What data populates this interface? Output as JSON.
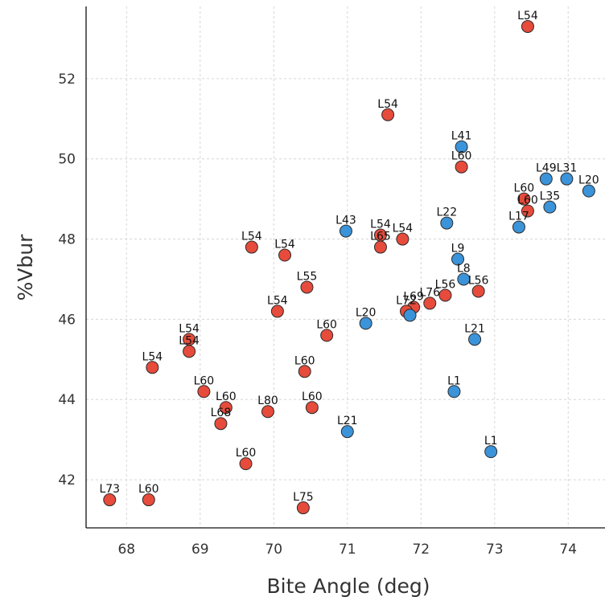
{
  "chart_data": {
    "type": "scatter",
    "xlabel": "Bite Angle (deg)",
    "ylabel": "%Vbur",
    "xlim": [
      67.45,
      74.5
    ],
    "ylim": [
      40.8,
      53.8
    ],
    "xticks": [
      68,
      69,
      70,
      71,
      72,
      73,
      74
    ],
    "yticks": [
      42,
      44,
      46,
      48,
      50,
      52
    ],
    "grid": true,
    "colors": {
      "red": "#e64b3b",
      "blue": "#3b93d9",
      "edge": "#2b2b2b"
    },
    "points": [
      {
        "x": 73.45,
        "y": 53.3,
        "label": "L54",
        "color": "red"
      },
      {
        "x": 71.55,
        "y": 51.1,
        "label": "L54",
        "color": "red"
      },
      {
        "x": 72.55,
        "y": 50.3,
        "label": "L41",
        "color": "blue"
      },
      {
        "x": 72.55,
        "y": 49.8,
        "label": "L60",
        "color": "red"
      },
      {
        "x": 73.7,
        "y": 49.5,
        "label": "L49",
        "color": "blue"
      },
      {
        "x": 73.98,
        "y": 49.5,
        "label": "L31",
        "color": "blue"
      },
      {
        "x": 74.28,
        "y": 49.2,
        "label": "L20",
        "color": "blue"
      },
      {
        "x": 73.4,
        "y": 49.0,
        "label": "L60",
        "color": "red"
      },
      {
        "x": 73.45,
        "y": 48.7,
        "label": "L60",
        "color": "red"
      },
      {
        "x": 73.75,
        "y": 48.8,
        "label": "L35",
        "color": "blue"
      },
      {
        "x": 73.33,
        "y": 48.3,
        "label": "L17",
        "color": "blue"
      },
      {
        "x": 72.35,
        "y": 48.4,
        "label": "L22",
        "color": "blue"
      },
      {
        "x": 70.98,
        "y": 48.2,
        "label": "L43",
        "color": "blue"
      },
      {
        "x": 71.45,
        "y": 48.1,
        "label": "L54",
        "color": "red"
      },
      {
        "x": 71.75,
        "y": 48.0,
        "label": "L54",
        "color": "red"
      },
      {
        "x": 71.45,
        "y": 47.8,
        "label": "L65",
        "color": "red"
      },
      {
        "x": 69.7,
        "y": 47.8,
        "label": "L54",
        "color": "red"
      },
      {
        "x": 70.15,
        "y": 47.6,
        "label": "L54",
        "color": "red"
      },
      {
        "x": 72.5,
        "y": 47.5,
        "label": "L9",
        "color": "blue"
      },
      {
        "x": 72.58,
        "y": 47.0,
        "label": "L8",
        "color": "blue"
      },
      {
        "x": 70.45,
        "y": 46.8,
        "label": "L55",
        "color": "red"
      },
      {
        "x": 72.78,
        "y": 46.7,
        "label": "L56",
        "color": "red"
      },
      {
        "x": 72.33,
        "y": 46.6,
        "label": "L56",
        "color": "red"
      },
      {
        "x": 72.12,
        "y": 46.4,
        "label": "L76",
        "color": "red"
      },
      {
        "x": 71.9,
        "y": 46.3,
        "label": "L69",
        "color": "red"
      },
      {
        "x": 71.8,
        "y": 46.2,
        "label": "L72",
        "color": "red"
      },
      {
        "x": 71.85,
        "y": 46.1,
        "label": "",
        "color": "blue"
      },
      {
        "x": 70.05,
        "y": 46.2,
        "label": "L54",
        "color": "red"
      },
      {
        "x": 71.25,
        "y": 45.9,
        "label": "L20",
        "color": "blue"
      },
      {
        "x": 70.72,
        "y": 45.6,
        "label": "L60",
        "color": "red"
      },
      {
        "x": 72.73,
        "y": 45.5,
        "label": "L21",
        "color": "blue"
      },
      {
        "x": 68.85,
        "y": 45.5,
        "label": "L54",
        "color": "red"
      },
      {
        "x": 68.85,
        "y": 45.2,
        "label": "L54",
        "color": "red"
      },
      {
        "x": 68.35,
        "y": 44.8,
        "label": "L54",
        "color": "red"
      },
      {
        "x": 70.42,
        "y": 44.7,
        "label": "L60",
        "color": "red"
      },
      {
        "x": 72.45,
        "y": 44.2,
        "label": "L1",
        "color": "blue"
      },
      {
        "x": 69.05,
        "y": 44.2,
        "label": "L60",
        "color": "red"
      },
      {
        "x": 69.35,
        "y": 43.8,
        "label": "L60",
        "color": "red"
      },
      {
        "x": 70.52,
        "y": 43.8,
        "label": "L60",
        "color": "red"
      },
      {
        "x": 69.92,
        "y": 43.7,
        "label": "L80",
        "color": "red"
      },
      {
        "x": 69.28,
        "y": 43.4,
        "label": "L68",
        "color": "red"
      },
      {
        "x": 71.0,
        "y": 43.2,
        "label": "L21",
        "color": "blue"
      },
      {
        "x": 72.95,
        "y": 42.7,
        "label": "L1",
        "color": "blue"
      },
      {
        "x": 69.62,
        "y": 42.4,
        "label": "L60",
        "color": "red"
      },
      {
        "x": 67.77,
        "y": 41.5,
        "label": "L73",
        "color": "red"
      },
      {
        "x": 68.3,
        "y": 41.5,
        "label": "L60",
        "color": "red"
      },
      {
        "x": 70.4,
        "y": 41.3,
        "label": "L75",
        "color": "red"
      }
    ]
  }
}
